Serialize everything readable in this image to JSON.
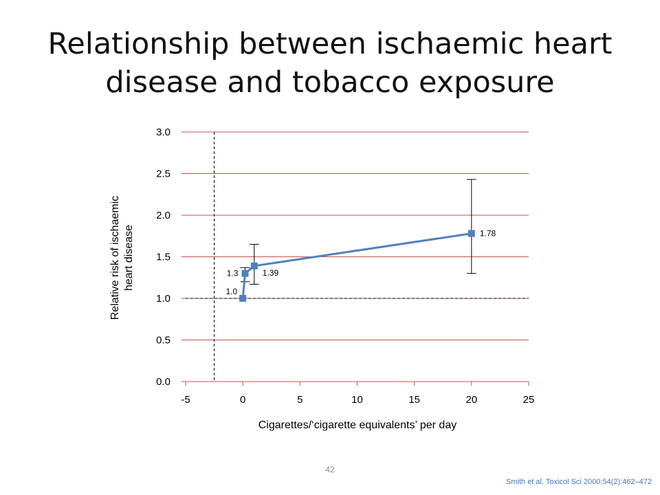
{
  "slide": {
    "title_line1": "Relationship between ischaemic heart",
    "title_line2": "disease and tobacco exposure",
    "page_number": "42",
    "citation": "Smith et al. Toxicol Sci 2000;54(2):462–472"
  },
  "colors": {
    "series": "#4f81bd",
    "gridline": "#c0504d",
    "text": "#000000",
    "citation": "#4472c4"
  },
  "chart_data": {
    "type": "line",
    "title": "",
    "xlabel": "Cigarettes/‘cigarette equivalents’ per day",
    "ylabel_lines": [
      "Relative risk of ischaemic",
      "heart disease"
    ],
    "xlim": [
      -5,
      25
    ],
    "ylim": [
      0,
      3
    ],
    "xticks": [
      "-5",
      "0",
      "5",
      "10",
      "15",
      "20",
      "25"
    ],
    "yticks": [
      "0.0",
      "0.5",
      "1.0",
      "1.5",
      "2.0",
      "2.5",
      "3.0"
    ],
    "grid": "horizontal",
    "series": [
      {
        "x": [
          0,
          0.2,
          1,
          20
        ],
        "y": [
          1.0,
          1.3,
          1.39,
          1.78
        ],
        "labels": [
          "1.0",
          "1.3",
          "1.39",
          "1.78"
        ],
        "error_low": [
          null,
          1.2,
          1.17,
          1.3
        ],
        "error_high": [
          null,
          1.37,
          1.65,
          2.43
        ]
      }
    ],
    "reference_lines": [
      {
        "axis": "x",
        "value": -2.5,
        "style": "dashed"
      },
      {
        "axis": "y",
        "value": 1.0,
        "style": "dashed"
      }
    ]
  }
}
